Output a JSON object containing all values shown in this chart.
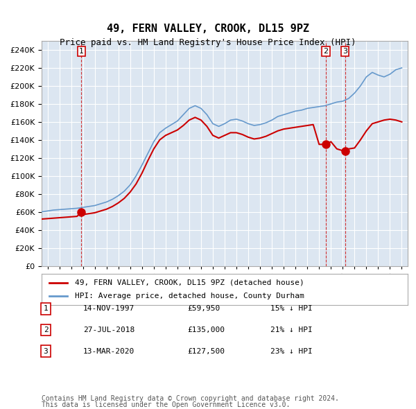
{
  "title": "49, FERN VALLEY, CROOK, DL15 9PZ",
  "subtitle": "Price paid vs. HM Land Registry's House Price Index (HPI)",
  "legend_line1": "49, FERN VALLEY, CROOK, DL15 9PZ (detached house)",
  "legend_line2": "HPI: Average price, detached house, County Durham",
  "footer1": "Contains HM Land Registry data © Crown copyright and database right 2024.",
  "footer2": "This data is licensed under the Open Government Licence v3.0.",
  "transactions": [
    {
      "label": "1",
      "date_x": 1997.87,
      "price": 59950,
      "hpi_pct": "15% ↓ HPI",
      "date_str": "14-NOV-1997"
    },
    {
      "label": "2",
      "date_x": 2018.57,
      "price": 135000,
      "hpi_pct": "21% ↓ HPI",
      "date_str": "27-JUL-2018"
    },
    {
      "label": "3",
      "date_x": 2020.2,
      "price": 127500,
      "hpi_pct": "23% ↓ HPI",
      "date_str": "13-MAR-2020"
    }
  ],
  "hpi_color": "#6699cc",
  "price_color": "#cc0000",
  "bg_color": "#dce6f1",
  "plot_bg": "#dce6f1",
  "grid_color": "#ffffff",
  "ylim": [
    0,
    250000
  ],
  "yticks": [
    0,
    20000,
    40000,
    60000,
    80000,
    100000,
    120000,
    140000,
    160000,
    180000,
    200000,
    220000,
    240000
  ],
  "xlim_left": 1994.5,
  "xlim_right": 2025.5,
  "hpi_data": {
    "years": [
      1994.5,
      1995.0,
      1995.5,
      1996.0,
      1996.5,
      1997.0,
      1997.5,
      1998.0,
      1998.5,
      1999.0,
      1999.5,
      2000.0,
      2000.5,
      2001.0,
      2001.5,
      2002.0,
      2002.5,
      2003.0,
      2003.5,
      2004.0,
      2004.5,
      2005.0,
      2005.5,
      2006.0,
      2006.5,
      2007.0,
      2007.5,
      2008.0,
      2008.5,
      2009.0,
      2009.5,
      2010.0,
      2010.5,
      2011.0,
      2011.5,
      2012.0,
      2012.5,
      2013.0,
      2013.5,
      2014.0,
      2014.5,
      2015.0,
      2015.5,
      2016.0,
      2016.5,
      2017.0,
      2017.5,
      2018.0,
      2018.5,
      2019.0,
      2019.5,
      2020.0,
      2020.5,
      2021.0,
      2021.5,
      2022.0,
      2022.5,
      2023.0,
      2023.5,
      2024.0,
      2024.5,
      2025.0
    ],
    "values": [
      60000,
      61000,
      62000,
      62500,
      63000,
      63500,
      64000,
      65000,
      66000,
      67000,
      69000,
      71000,
      74000,
      78000,
      83000,
      90000,
      100000,
      112000,
      125000,
      138000,
      148000,
      153000,
      157000,
      161000,
      168000,
      175000,
      178000,
      175000,
      168000,
      158000,
      155000,
      158000,
      162000,
      163000,
      161000,
      158000,
      156000,
      157000,
      159000,
      162000,
      166000,
      168000,
      170000,
      172000,
      173000,
      175000,
      176000,
      177000,
      178000,
      180000,
      182000,
      183000,
      186000,
      192000,
      200000,
      210000,
      215000,
      212000,
      210000,
      213000,
      218000,
      220000
    ]
  },
  "price_data": {
    "years": [
      1994.5,
      1995.0,
      1995.5,
      1996.0,
      1996.5,
      1997.0,
      1997.5,
      1997.87,
      1998.0,
      1998.5,
      1999.0,
      1999.5,
      2000.0,
      2000.5,
      2001.0,
      2001.5,
      2002.0,
      2002.5,
      2003.0,
      2003.5,
      2004.0,
      2004.5,
      2005.0,
      2005.5,
      2006.0,
      2006.5,
      2007.0,
      2007.5,
      2008.0,
      2008.5,
      2009.0,
      2009.5,
      2010.0,
      2010.5,
      2011.0,
      2011.5,
      2012.0,
      2012.5,
      2013.0,
      2013.5,
      2014.0,
      2014.5,
      2015.0,
      2015.5,
      2016.0,
      2016.5,
      2017.0,
      2017.5,
      2018.0,
      2018.57,
      2019.0,
      2019.5,
      2020.0,
      2020.2,
      2020.5,
      2021.0,
      2021.5,
      2022.0,
      2022.5,
      2023.0,
      2023.5,
      2024.0,
      2024.5,
      2025.0
    ],
    "values": [
      52000,
      52500,
      53000,
      53500,
      54000,
      54500,
      55000,
      59950,
      57000,
      58000,
      59000,
      61000,
      63000,
      66000,
      70000,
      75000,
      82000,
      91000,
      103000,
      117000,
      130000,
      140000,
      145000,
      148000,
      151000,
      156000,
      162000,
      165000,
      162000,
      155000,
      145000,
      142000,
      145000,
      148000,
      148000,
      146000,
      143000,
      141000,
      142000,
      144000,
      147000,
      150000,
      152000,
      153000,
      154000,
      155000,
      156000,
      157000,
      135000,
      135000,
      138000,
      130000,
      128000,
      127500,
      130000,
      131000,
      140000,
      150000,
      158000,
      160000,
      162000,
      163000,
      162000,
      160000
    ]
  }
}
